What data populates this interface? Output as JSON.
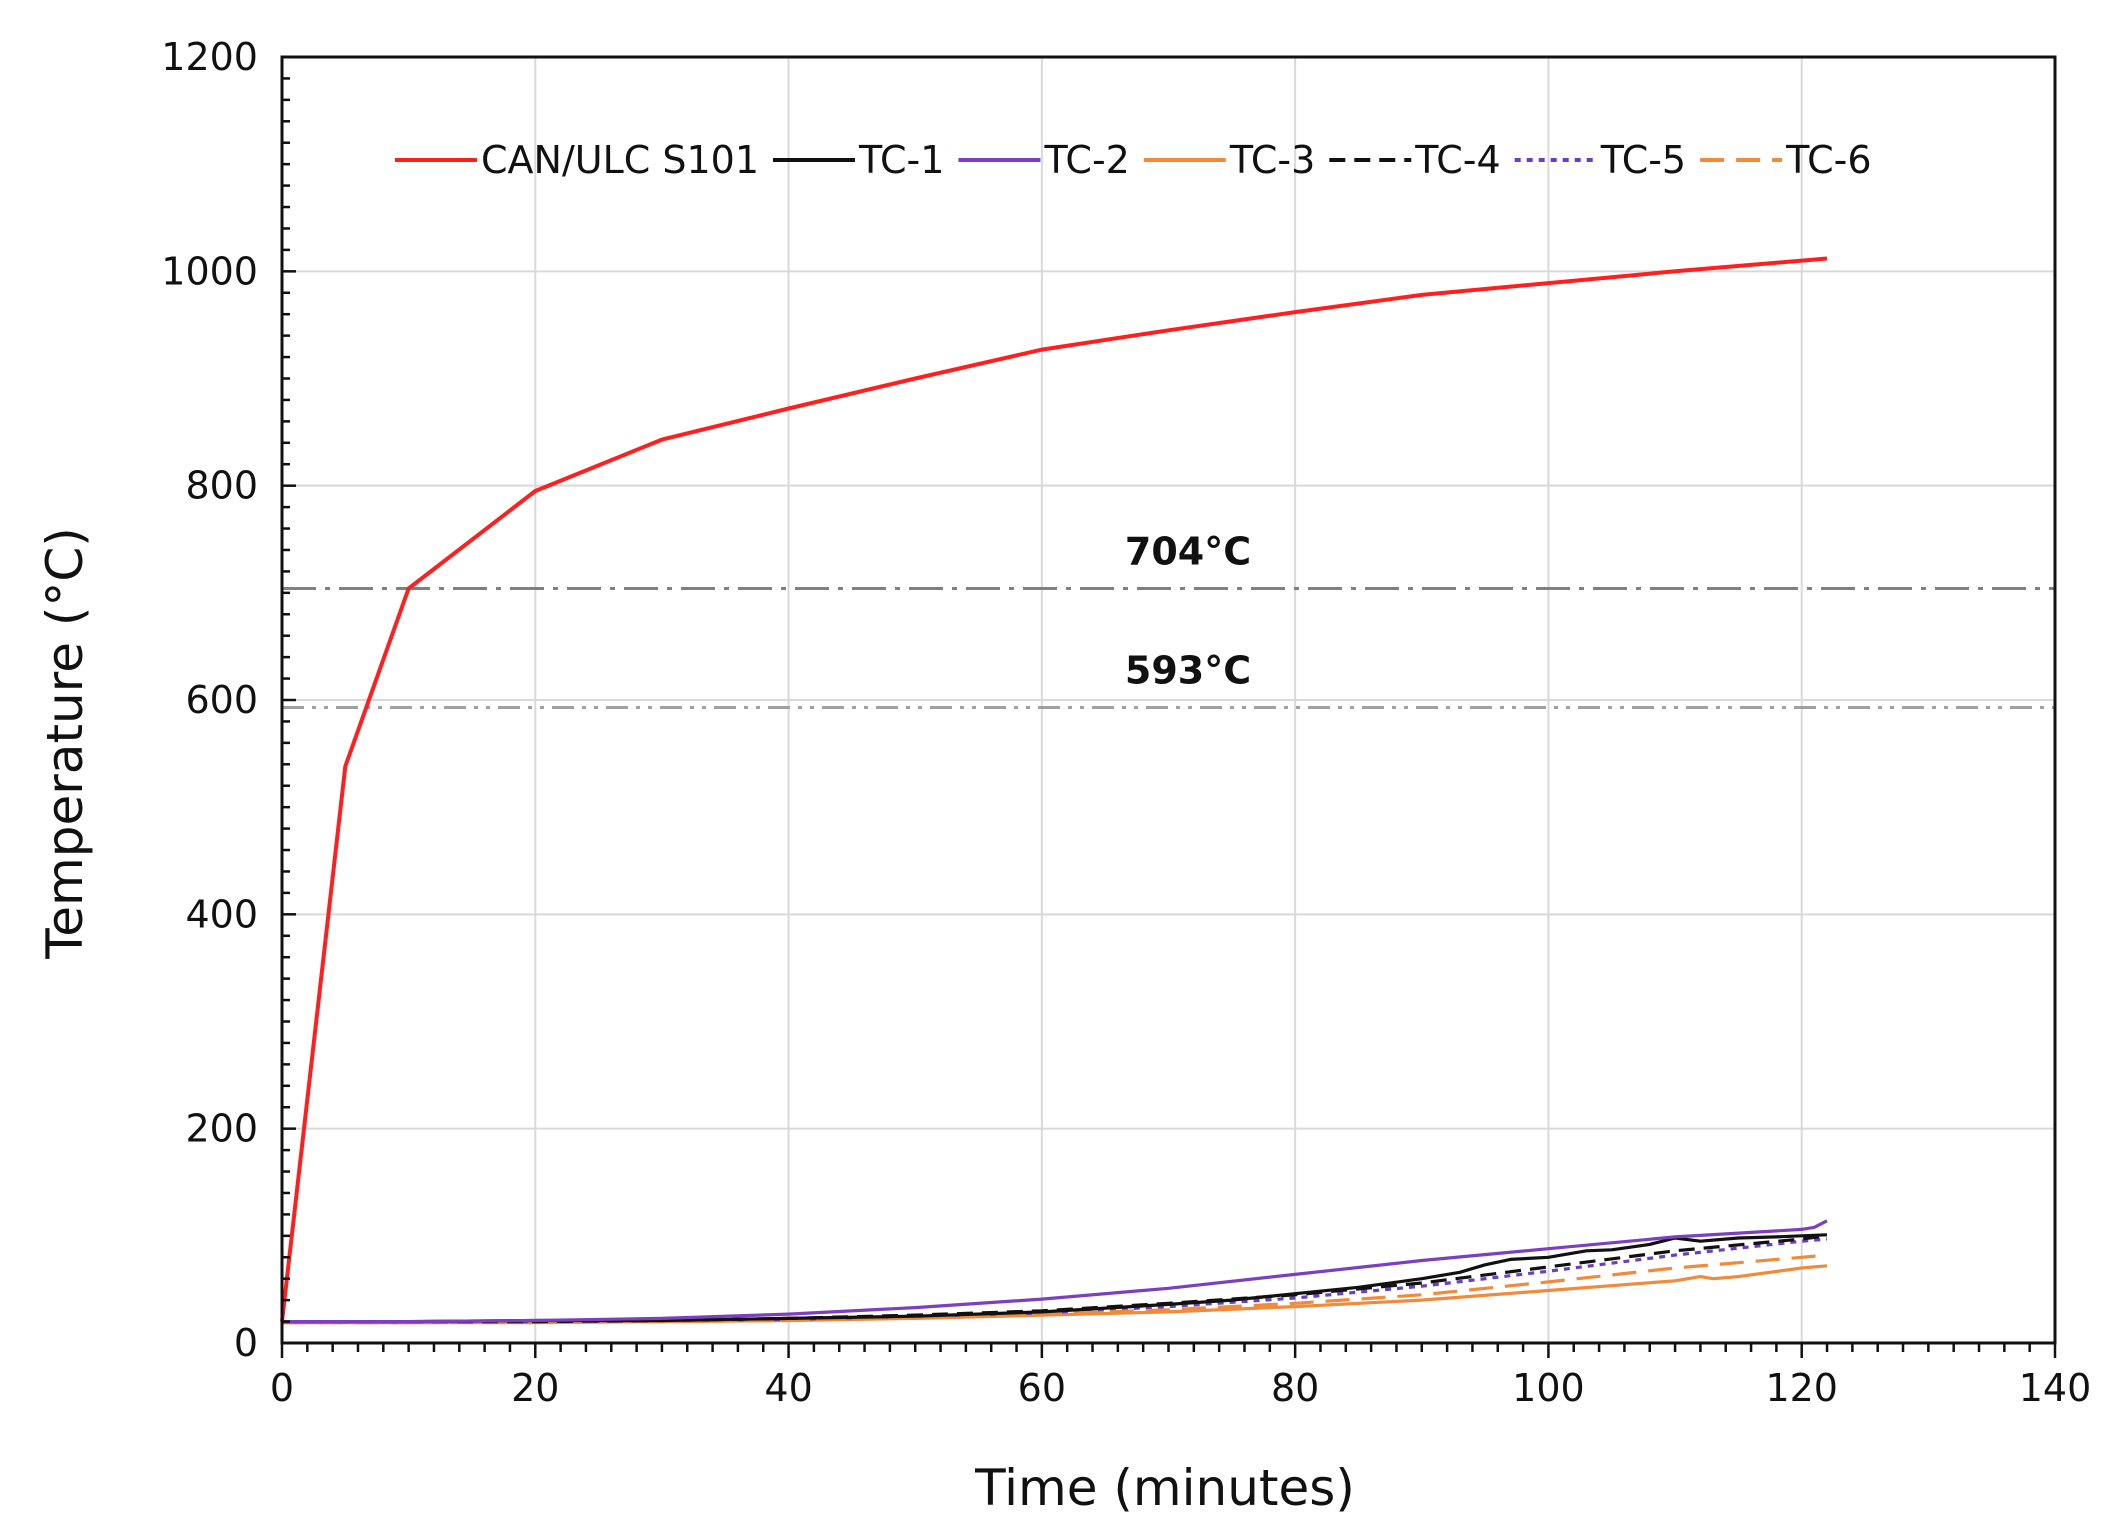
{
  "chart_data": {
    "type": "line",
    "xlabel": "Time (minutes)",
    "ylabel": "Temperature (°C)",
    "xlim": [
      0,
      140
    ],
    "ylim": [
      0,
      1200
    ],
    "x_ticks": [
      0,
      20,
      40,
      60,
      80,
      100,
      120,
      140
    ],
    "y_ticks": [
      0,
      200,
      400,
      600,
      800,
      1000,
      1200
    ],
    "grid": true,
    "legend_position": "top",
    "reference_lines": [
      {
        "label": "704°C",
        "value": 704,
        "style": "dash-dot",
        "color": "#808080"
      },
      {
        "label": "593°C",
        "value": 593,
        "style": "dash-dot-dot",
        "color": "#a0a0a0"
      }
    ],
    "series": [
      {
        "name": "CAN/ULC S101",
        "color": "#ff1f1f",
        "dash": "solid",
        "x": [
          0,
          5,
          10,
          20,
          30,
          40,
          50,
          60,
          70,
          80,
          90,
          100,
          110,
          120,
          122
        ],
        "y": [
          20,
          538,
          704,
          795,
          843,
          872,
          900,
          927,
          945,
          962,
          978,
          989,
          1000,
          1010,
          1012
        ]
      },
      {
        "name": "TC-1",
        "color": "#111111",
        "dash": "solid",
        "x": [
          0,
          10,
          20,
          30,
          40,
          50,
          60,
          70,
          75,
          80,
          85,
          90,
          93,
          95,
          97,
          100,
          103,
          105,
          108,
          110,
          112,
          115,
          118,
          120,
          122
        ],
        "y": [
          20,
          20,
          21,
          21,
          23,
          25,
          29,
          36,
          40,
          46,
          52,
          60,
          66,
          73,
          78,
          80,
          86,
          87,
          92,
          98,
          95,
          98,
          99,
          100,
          101
        ]
      },
      {
        "name": "TC-2",
        "color": "#7b3fbf",
        "dash": "solid",
        "x": [
          0,
          10,
          20,
          30,
          40,
          50,
          60,
          70,
          80,
          90,
          100,
          110,
          120,
          121,
          122
        ],
        "y": [
          20,
          20,
          21,
          23,
          27,
          33,
          41,
          51,
          64,
          77,
          88,
          99,
          106,
          108,
          114
        ]
      },
      {
        "name": "TC-3",
        "color": "#f08a3c",
        "dash": "solid",
        "x": [
          0,
          10,
          20,
          30,
          40,
          50,
          60,
          70,
          80,
          90,
          100,
          110,
          112,
          113,
          115,
          120,
          122
        ],
        "y": [
          19,
          19,
          19,
          20,
          21,
          23,
          26,
          29,
          34,
          40,
          49,
          58,
          62,
          60,
          62,
          70,
          72
        ]
      },
      {
        "name": "TC-4",
        "color": "#111111",
        "dash": "dashed",
        "x": [
          0,
          10,
          20,
          30,
          40,
          50,
          60,
          70,
          80,
          90,
          100,
          110,
          120,
          122
        ],
        "y": [
          20,
          20,
          20,
          21,
          23,
          26,
          30,
          37,
          45,
          56,
          71,
          86,
          97,
          100
        ]
      },
      {
        "name": "TC-5",
        "color": "#6a3fc8",
        "dash": "dotted",
        "x": [
          0,
          10,
          20,
          30,
          40,
          50,
          60,
          70,
          80,
          90,
          100,
          110,
          120,
          122
        ],
        "y": [
          20,
          20,
          20,
          21,
          22,
          25,
          28,
          34,
          42,
          53,
          67,
          82,
          95,
          97
        ]
      },
      {
        "name": "TC-6",
        "color": "#f08a3c",
        "dash": "longdash",
        "x": [
          0,
          10,
          20,
          30,
          40,
          50,
          60,
          70,
          80,
          90,
          100,
          110,
          120,
          122
        ],
        "y": [
          19,
          19,
          20,
          20,
          21,
          24,
          27,
          31,
          37,
          45,
          57,
          70,
          80,
          82
        ]
      }
    ]
  }
}
